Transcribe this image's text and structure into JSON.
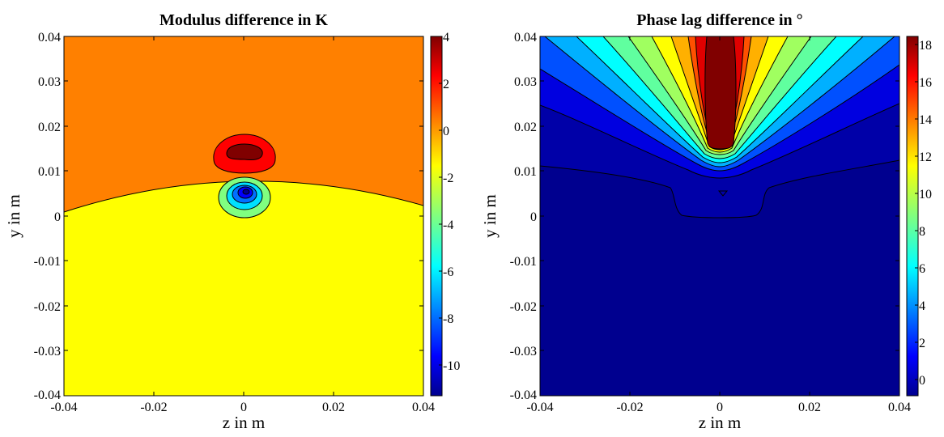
{
  "chart_data": [
    {
      "type": "contour",
      "title": "Modulus difference in K",
      "xlabel": "z in m",
      "ylabel": "y in m",
      "xlim": [
        -0.04,
        0.04
      ],
      "ylim": [
        -0.04,
        0.04
      ],
      "xticks": [
        "-0.04",
        "-0.02",
        "0",
        "0.02",
        "0.04"
      ],
      "yticks": [
        "0.04",
        "0.03",
        "0.02",
        "0.01",
        "0",
        "-0.01",
        "-0.02",
        "-0.03",
        "-0.04"
      ],
      "colorbar": {
        "range": [
          -11.3,
          4
        ],
        "ticks": [
          "4",
          "2",
          "0",
          "-2",
          "-4",
          "-6",
          "-8",
          "-10"
        ]
      },
      "regions": [
        {
          "description": "upper field",
          "value_range": [
            0,
            2
          ],
          "color": "#ff8000"
        },
        {
          "description": "lower field",
          "value_range": [
            -2,
            0
          ],
          "color": "#ffff00"
        },
        {
          "description": "hot spot",
          "center": [
            0,
            0.013
          ],
          "value_range": [
            2,
            4
          ],
          "color": "#ff0000"
        },
        {
          "description": "cold spot",
          "center": [
            0.0005,
            0.0045
          ],
          "min_value": -11.3,
          "color": "#0000c0"
        }
      ]
    },
    {
      "type": "contour",
      "title": "Phase lag difference in °",
      "xlabel": "z in m",
      "ylabel": "y in m",
      "xlim": [
        -0.04,
        0.04
      ],
      "ylim": [
        -0.04,
        0.04
      ],
      "xticks": [
        "-0.04",
        "-0.02",
        "0",
        "0.02",
        "0.04"
      ],
      "yticks": [
        "0.04",
        "0.03",
        "0.02",
        "0.01",
        "0",
        "-0.01",
        "-0.02",
        "-0.03",
        "-0.04"
      ],
      "colorbar": {
        "range": [
          -0.8,
          18.5
        ],
        "ticks": [
          "18",
          "16",
          "14",
          "12",
          "10",
          "8",
          "6",
          "4",
          "2",
          "0"
        ]
      },
      "levels": [
        0,
        2,
        4,
        6,
        8,
        10,
        12,
        14,
        16,
        18
      ],
      "regions": [
        {
          "description": "lower field",
          "value_range": [
            0,
            1
          ],
          "color": "#00008f"
        },
        {
          "description": "fan maximum",
          "center": [
            0,
            0.03
          ],
          "value_range": [
            16,
            18
          ],
          "color": "#800000"
        }
      ]
    }
  ]
}
